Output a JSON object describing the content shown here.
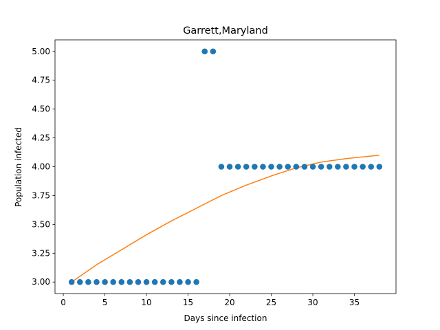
{
  "chart_data": {
    "type": "scatter",
    "title": "Garrett,Maryland",
    "xlabel": "Days since infection",
    "ylabel": "Population infected",
    "xlim": [
      -1,
      40
    ],
    "ylim": [
      2.9,
      5.1
    ],
    "xticks": [
      0,
      5,
      10,
      15,
      20,
      25,
      30,
      35
    ],
    "yticks": [
      3.0,
      3.25,
      3.5,
      3.75,
      4.0,
      4.25,
      4.5,
      4.75,
      5.0
    ],
    "ytick_labels": [
      "3.00",
      "3.25",
      "3.50",
      "3.75",
      "4.00",
      "4.25",
      "4.50",
      "4.75",
      "5.00"
    ],
    "grid": false,
    "series": [
      {
        "type": "scatter",
        "color": "#1f77b4",
        "x": [
          1,
          2,
          3,
          4,
          5,
          6,
          7,
          8,
          9,
          10,
          11,
          12,
          13,
          14,
          15,
          16,
          17,
          18,
          19,
          20,
          21,
          22,
          23,
          24,
          25,
          26,
          27,
          28,
          29,
          30,
          31,
          32,
          33,
          34,
          35,
          36,
          37,
          38
        ],
        "y": [
          3,
          3,
          3,
          3,
          3,
          3,
          3,
          3,
          3,
          3,
          3,
          3,
          3,
          3,
          3,
          3,
          5,
          5,
          4,
          4,
          4,
          4,
          4,
          4,
          4,
          4,
          4,
          4,
          4,
          4,
          4,
          4,
          4,
          4,
          4,
          4,
          4,
          4
        ]
      },
      {
        "type": "line",
        "color": "#ff7f0e",
        "x": [
          1,
          4,
          7,
          10,
          13,
          16,
          19,
          22,
          25,
          28,
          31,
          34,
          38
        ],
        "y": [
          3.0,
          3.15,
          3.28,
          3.41,
          3.53,
          3.64,
          3.75,
          3.84,
          3.92,
          3.99,
          4.04,
          4.07,
          4.1
        ]
      }
    ]
  }
}
